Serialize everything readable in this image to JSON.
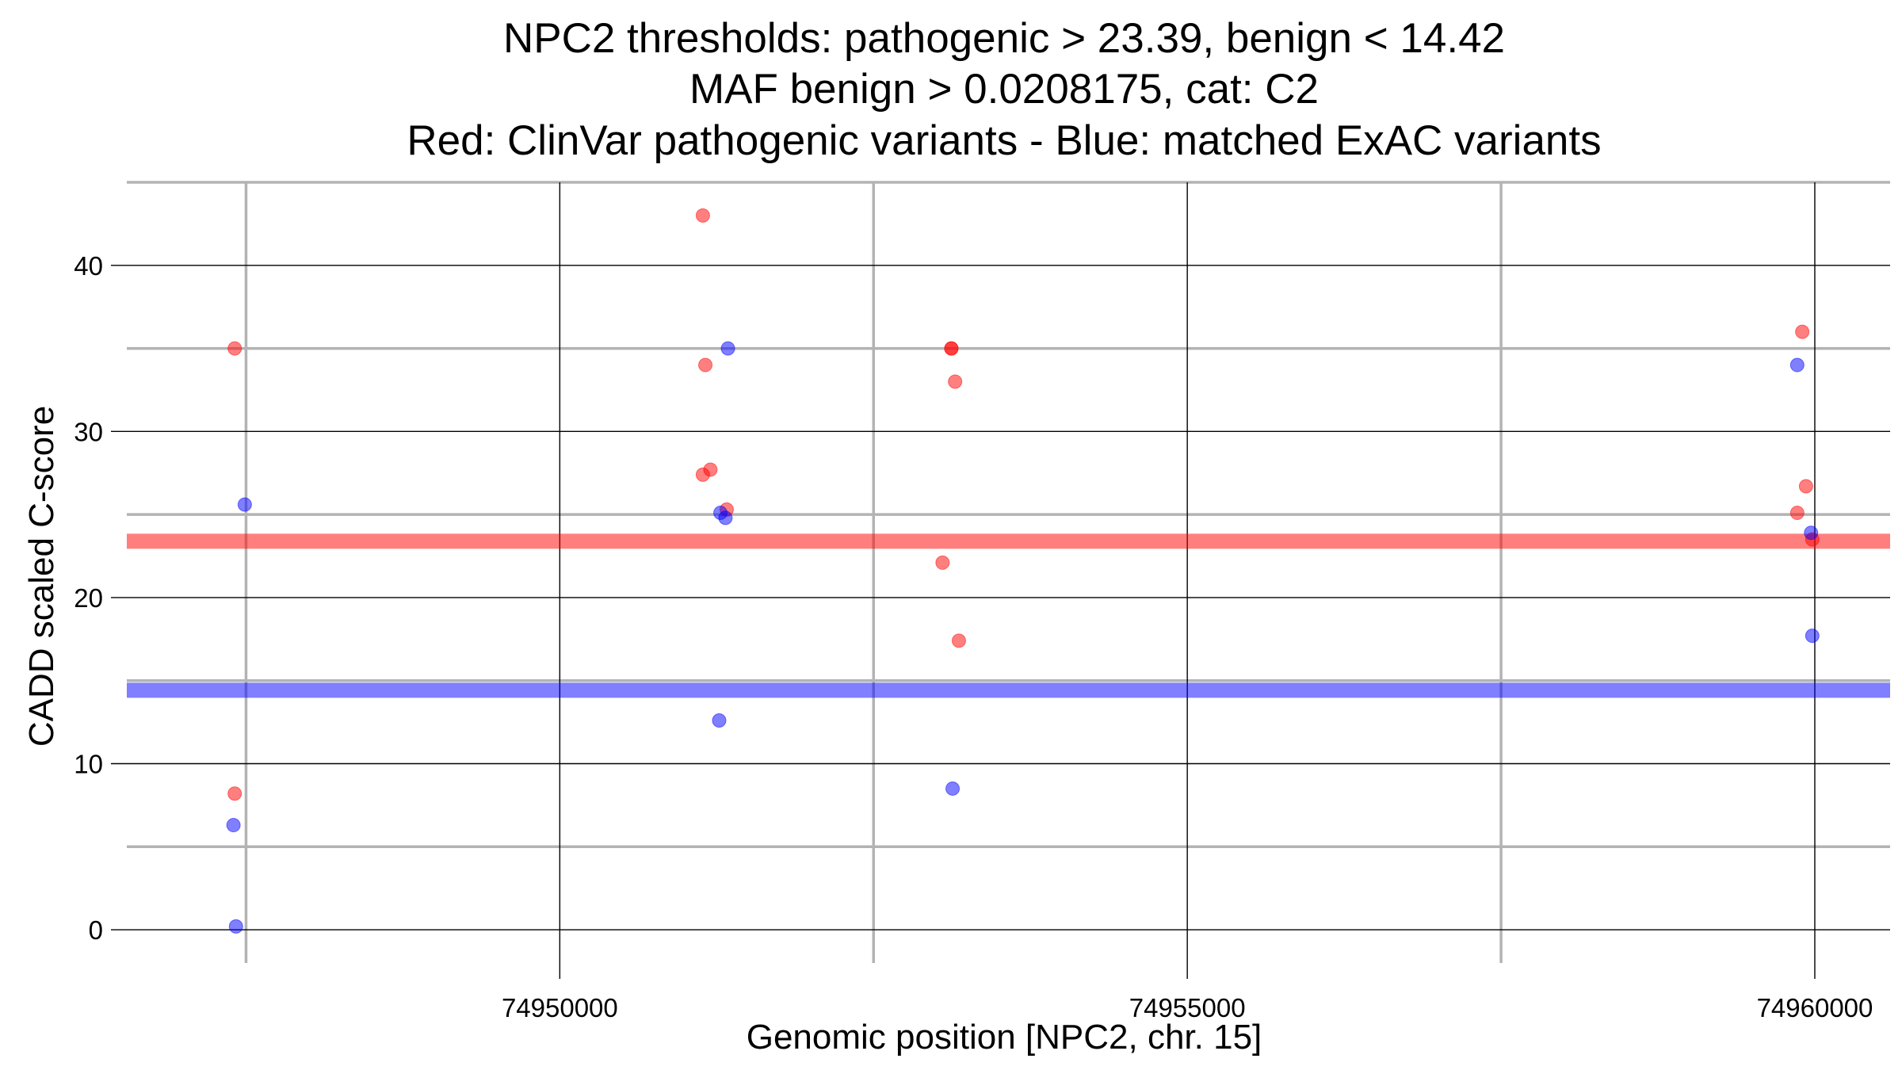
{
  "chart_data": {
    "type": "scatter",
    "title_lines": [
      "NPC2 thresholds: pathogenic > 23.39, benign < 14.42",
      "MAF benign > 0.0208175, cat: C2",
      "Red: ClinVar pathogenic variants - Blue: matched ExAC variants"
    ],
    "xlabel": "Genomic position [NPC2, chr. 15]",
    "ylabel": "CADD scaled C-score",
    "xlim": [
      74946550,
      74960600
    ],
    "ylim": [
      -2,
      45
    ],
    "x_ticks": [
      74950000,
      74955000,
      74960000
    ],
    "x_tick_labels": [
      "74950000",
      "74955000",
      "74960000"
    ],
    "x_minor_grid": [
      74947500,
      74952500,
      74957500
    ],
    "y_ticks": [
      0,
      10,
      20,
      30,
      40
    ],
    "y_tick_labels": [
      "0",
      "10",
      "20",
      "30",
      "40"
    ],
    "y_minor_grid": [
      5,
      15,
      25,
      35,
      45
    ],
    "thresholds": [
      {
        "name": "pathogenic",
        "value": 23.39,
        "color": "#ff0000"
      },
      {
        "name": "benign",
        "value": 14.42,
        "color": "#0000ff"
      }
    ],
    "series": [
      {
        "name": "ClinVar pathogenic variants",
        "color": "#ff0000",
        "points": [
          {
            "x": 74947410,
            "y": 35.0
          },
          {
            "x": 74947410,
            "y": 8.2
          },
          {
            "x": 74951140,
            "y": 43.0
          },
          {
            "x": 74951160,
            "y": 34.0
          },
          {
            "x": 74951140,
            "y": 27.4
          },
          {
            "x": 74951200,
            "y": 27.7
          },
          {
            "x": 74951330,
            "y": 25.3
          },
          {
            "x": 74953120,
            "y": 35.0
          },
          {
            "x": 74953120,
            "y": 35.0
          },
          {
            "x": 74953150,
            "y": 33.0
          },
          {
            "x": 74953050,
            "y": 22.1
          },
          {
            "x": 74953180,
            "y": 17.4
          },
          {
            "x": 74959900,
            "y": 36.0
          },
          {
            "x": 74959930,
            "y": 26.7
          },
          {
            "x": 74959860,
            "y": 25.1
          },
          {
            "x": 74959980,
            "y": 23.5
          }
        ]
      },
      {
        "name": "matched ExAC variants",
        "color": "#0000ff",
        "points": [
          {
            "x": 74947490,
            "y": 25.6
          },
          {
            "x": 74947400,
            "y": 6.3
          },
          {
            "x": 74947420,
            "y": 0.2
          },
          {
            "x": 74951340,
            "y": 35.0
          },
          {
            "x": 74951280,
            "y": 25.1
          },
          {
            "x": 74951320,
            "y": 24.8
          },
          {
            "x": 74951270,
            "y": 12.6
          },
          {
            "x": 74953130,
            "y": 8.5
          },
          {
            "x": 74959860,
            "y": 34.0
          },
          {
            "x": 74959970,
            "y": 23.9
          },
          {
            "x": 74959980,
            "y": 17.7
          }
        ]
      }
    ]
  }
}
